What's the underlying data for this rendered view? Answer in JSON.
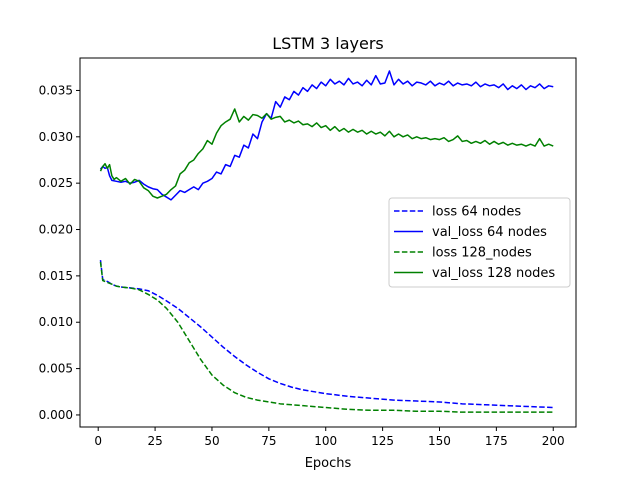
{
  "chart_data": {
    "type": "line",
    "title": "LSTM 3 layers",
    "xlabel": "Epochs",
    "ylabel": "",
    "xlim": [
      -8,
      210
    ],
    "ylim": [
      -0.0013,
      0.0385
    ],
    "xticks": [
      0,
      25,
      50,
      75,
      100,
      125,
      150,
      175,
      200
    ],
    "xtick_labels": [
      "0",
      "25",
      "50",
      "75",
      "100",
      "125",
      "150",
      "175",
      "200"
    ],
    "yticks": [
      0.0,
      0.005,
      0.01,
      0.015,
      0.02,
      0.025,
      0.03,
      0.035
    ],
    "ytick_labels": [
      "0.000",
      "0.005",
      "0.010",
      "0.015",
      "0.020",
      "0.025",
      "0.030",
      "0.035"
    ],
    "grid": false,
    "legend_position": "center-right",
    "series": [
      {
        "name": "loss 64 nodes",
        "color": "#0000ff",
        "style": "dashed",
        "points": [
          [
            1,
            0.0167
          ],
          [
            2,
            0.0146
          ],
          [
            4,
            0.0144
          ],
          [
            6,
            0.0141
          ],
          [
            8,
            0.0139
          ],
          [
            10,
            0.0138
          ],
          [
            14,
            0.0137
          ],
          [
            18,
            0.0136
          ],
          [
            22,
            0.0134
          ],
          [
            26,
            0.0129
          ],
          [
            30,
            0.0123
          ],
          [
            35,
            0.0115
          ],
          [
            40,
            0.0105
          ],
          [
            45,
            0.0095
          ],
          [
            50,
            0.0084
          ],
          [
            55,
            0.0073
          ],
          [
            60,
            0.0063
          ],
          [
            65,
            0.0054
          ],
          [
            70,
            0.0046
          ],
          [
            75,
            0.0039
          ],
          [
            80,
            0.0034
          ],
          [
            85,
            0.003
          ],
          [
            90,
            0.0027
          ],
          [
            100,
            0.0023
          ],
          [
            110,
            0.002
          ],
          [
            120,
            0.0018
          ],
          [
            130,
            0.0016
          ],
          [
            140,
            0.0015
          ],
          [
            150,
            0.0014
          ],
          [
            160,
            0.0012
          ],
          [
            170,
            0.0011
          ],
          [
            180,
            0.001
          ],
          [
            190,
            0.0009
          ],
          [
            200,
            0.0008
          ]
        ]
      },
      {
        "name": "val_loss 64 nodes",
        "color": "#0000ff",
        "style": "solid",
        "points": [
          [
            1,
            0.0265
          ],
          [
            2,
            0.0268
          ],
          [
            3,
            0.0266
          ],
          [
            4,
            0.0267
          ],
          [
            5,
            0.0258
          ],
          [
            6,
            0.0253
          ],
          [
            8,
            0.0252
          ],
          [
            10,
            0.0251
          ],
          [
            12,
            0.0252
          ],
          [
            14,
            0.025
          ],
          [
            16,
            0.0251
          ],
          [
            18,
            0.0253
          ],
          [
            20,
            0.0249
          ],
          [
            22,
            0.0246
          ],
          [
            24,
            0.0244
          ],
          [
            26,
            0.0243
          ],
          [
            28,
            0.0238
          ],
          [
            30,
            0.0235
          ],
          [
            32,
            0.0232
          ],
          [
            34,
            0.0237
          ],
          [
            36,
            0.0242
          ],
          [
            38,
            0.024
          ],
          [
            40,
            0.0243
          ],
          [
            42,
            0.0246
          ],
          [
            44,
            0.0243
          ],
          [
            46,
            0.025
          ],
          [
            48,
            0.0252
          ],
          [
            50,
            0.0255
          ],
          [
            52,
            0.0262
          ],
          [
            54,
            0.026
          ],
          [
            56,
            0.027
          ],
          [
            58,
            0.0268
          ],
          [
            60,
            0.028
          ],
          [
            62,
            0.0278
          ],
          [
            64,
            0.0291
          ],
          [
            66,
            0.0288
          ],
          [
            68,
            0.0303
          ],
          [
            70,
            0.0298
          ],
          [
            72,
            0.0316
          ],
          [
            74,
            0.0325
          ],
          [
            76,
            0.032
          ],
          [
            78,
            0.0338
          ],
          [
            80,
            0.0332
          ],
          [
            82,
            0.0343
          ],
          [
            84,
            0.034
          ],
          [
            86,
            0.0349
          ],
          [
            88,
            0.0345
          ],
          [
            90,
            0.0353
          ],
          [
            92,
            0.0349
          ],
          [
            94,
            0.0356
          ],
          [
            96,
            0.0352
          ],
          [
            98,
            0.0359
          ],
          [
            100,
            0.0355
          ],
          [
            102,
            0.0362
          ],
          [
            104,
            0.0357
          ],
          [
            106,
            0.036
          ],
          [
            108,
            0.0356
          ],
          [
            110,
            0.0363
          ],
          [
            112,
            0.0357
          ],
          [
            114,
            0.0359
          ],
          [
            116,
            0.0355
          ],
          [
            118,
            0.0361
          ],
          [
            120,
            0.0356
          ],
          [
            122,
            0.0366
          ],
          [
            124,
            0.0357
          ],
          [
            126,
            0.0358
          ],
          [
            128,
            0.0371
          ],
          [
            130,
            0.0356
          ],
          [
            132,
            0.0362
          ],
          [
            134,
            0.0357
          ],
          [
            136,
            0.036
          ],
          [
            138,
            0.0355
          ],
          [
            140,
            0.0359
          ],
          [
            142,
            0.0358
          ],
          [
            144,
            0.0356
          ],
          [
            146,
            0.036
          ],
          [
            148,
            0.0355
          ],
          [
            150,
            0.0358
          ],
          [
            152,
            0.0356
          ],
          [
            154,
            0.036
          ],
          [
            156,
            0.0355
          ],
          [
            158,
            0.0358
          ],
          [
            160,
            0.0356
          ],
          [
            162,
            0.0357
          ],
          [
            164,
            0.0355
          ],
          [
            166,
            0.0359
          ],
          [
            168,
            0.0354
          ],
          [
            170,
            0.0357
          ],
          [
            172,
            0.0355
          ],
          [
            174,
            0.0356
          ],
          [
            176,
            0.0353
          ],
          [
            178,
            0.0357
          ],
          [
            180,
            0.0351
          ],
          [
            182,
            0.0355
          ],
          [
            184,
            0.0352
          ],
          [
            186,
            0.0356
          ],
          [
            188,
            0.0351
          ],
          [
            190,
            0.0355
          ],
          [
            192,
            0.0353
          ],
          [
            194,
            0.0357
          ],
          [
            196,
            0.0352
          ],
          [
            198,
            0.0355
          ],
          [
            200,
            0.0354
          ]
        ]
      },
      {
        "name": "loss 128_nodes",
        "color": "#008000",
        "style": "dashed",
        "points": [
          [
            1,
            0.0165
          ],
          [
            2,
            0.0145
          ],
          [
            4,
            0.0143
          ],
          [
            6,
            0.0141
          ],
          [
            8,
            0.0139
          ],
          [
            10,
            0.0138
          ],
          [
            14,
            0.0137
          ],
          [
            18,
            0.0135
          ],
          [
            22,
            0.013
          ],
          [
            26,
            0.0124
          ],
          [
            30,
            0.0115
          ],
          [
            35,
            0.01
          ],
          [
            40,
            0.008
          ],
          [
            45,
            0.006
          ],
          [
            50,
            0.0043
          ],
          [
            55,
            0.0032
          ],
          [
            60,
            0.0024
          ],
          [
            65,
            0.0019
          ],
          [
            70,
            0.0016
          ],
          [
            75,
            0.0014
          ],
          [
            80,
            0.0012
          ],
          [
            90,
            0.001
          ],
          [
            100,
            0.0008
          ],
          [
            110,
            0.0006
          ],
          [
            120,
            0.0005
          ],
          [
            130,
            0.0005
          ],
          [
            140,
            0.0004
          ],
          [
            150,
            0.0004
          ],
          [
            160,
            0.0003
          ],
          [
            170,
            0.0003
          ],
          [
            180,
            0.0003
          ],
          [
            190,
            0.0003
          ],
          [
            200,
            0.0003
          ]
        ]
      },
      {
        "name": "val_loss 128 nodes",
        "color": "#008000",
        "style": "solid",
        "points": [
          [
            1,
            0.0263
          ],
          [
            2,
            0.0268
          ],
          [
            3,
            0.0271
          ],
          [
            4,
            0.0266
          ],
          [
            5,
            0.027
          ],
          [
            6,
            0.0258
          ],
          [
            7,
            0.0254
          ],
          [
            8,
            0.0256
          ],
          [
            10,
            0.0252
          ],
          [
            12,
            0.0255
          ],
          [
            14,
            0.0249
          ],
          [
            16,
            0.0254
          ],
          [
            18,
            0.0252
          ],
          [
            20,
            0.0245
          ],
          [
            22,
            0.0242
          ],
          [
            24,
            0.0236
          ],
          [
            26,
            0.0234
          ],
          [
            28,
            0.0236
          ],
          [
            30,
            0.0238
          ],
          [
            32,
            0.0243
          ],
          [
            34,
            0.0247
          ],
          [
            36,
            0.026
          ],
          [
            38,
            0.0264
          ],
          [
            40,
            0.0272
          ],
          [
            42,
            0.0275
          ],
          [
            44,
            0.0282
          ],
          [
            46,
            0.0287
          ],
          [
            48,
            0.0296
          ],
          [
            50,
            0.0292
          ],
          [
            52,
            0.0304
          ],
          [
            54,
            0.0312
          ],
          [
            56,
            0.0316
          ],
          [
            58,
            0.0319
          ],
          [
            60,
            0.033
          ],
          [
            62,
            0.0316
          ],
          [
            64,
            0.0322
          ],
          [
            66,
            0.0318
          ],
          [
            68,
            0.0324
          ],
          [
            70,
            0.0323
          ],
          [
            72,
            0.032
          ],
          [
            74,
            0.0325
          ],
          [
            76,
            0.0319
          ],
          [
            78,
            0.0321
          ],
          [
            80,
            0.0322
          ],
          [
            82,
            0.0316
          ],
          [
            84,
            0.0318
          ],
          [
            86,
            0.0315
          ],
          [
            88,
            0.0317
          ],
          [
            90,
            0.0313
          ],
          [
            92,
            0.0314
          ],
          [
            94,
            0.0311
          ],
          [
            96,
            0.0315
          ],
          [
            98,
            0.031
          ],
          [
            100,
            0.0312
          ],
          [
            102,
            0.0307
          ],
          [
            104,
            0.0311
          ],
          [
            106,
            0.0306
          ],
          [
            108,
            0.0309
          ],
          [
            110,
            0.0305
          ],
          [
            112,
            0.0308
          ],
          [
            114,
            0.0305
          ],
          [
            116,
            0.0307
          ],
          [
            118,
            0.0303
          ],
          [
            120,
            0.0306
          ],
          [
            122,
            0.0303
          ],
          [
            124,
            0.0305
          ],
          [
            126,
            0.0301
          ],
          [
            128,
            0.0306
          ],
          [
            130,
            0.03
          ],
          [
            132,
            0.0303
          ],
          [
            134,
            0.03
          ],
          [
            136,
            0.0302
          ],
          [
            138,
            0.0298
          ],
          [
            140,
            0.03
          ],
          [
            142,
            0.0298
          ],
          [
            144,
            0.0299
          ],
          [
            146,
            0.0297
          ],
          [
            148,
            0.0298
          ],
          [
            150,
            0.0297
          ],
          [
            152,
            0.0299
          ],
          [
            154,
            0.0295
          ],
          [
            156,
            0.0297
          ],
          [
            158,
            0.0301
          ],
          [
            160,
            0.0295
          ],
          [
            162,
            0.0296
          ],
          [
            164,
            0.0293
          ],
          [
            166,
            0.0295
          ],
          [
            168,
            0.0293
          ],
          [
            170,
            0.0296
          ],
          [
            172,
            0.0292
          ],
          [
            174,
            0.0295
          ],
          [
            176,
            0.0292
          ],
          [
            178,
            0.0294
          ],
          [
            180,
            0.0291
          ],
          [
            182,
            0.0293
          ],
          [
            184,
            0.0291
          ],
          [
            186,
            0.0292
          ],
          [
            188,
            0.029
          ],
          [
            190,
            0.0292
          ],
          [
            192,
            0.029
          ],
          [
            194,
            0.0298
          ],
          [
            196,
            0.029
          ],
          [
            198,
            0.0292
          ],
          [
            200,
            0.029
          ]
        ]
      }
    ]
  }
}
